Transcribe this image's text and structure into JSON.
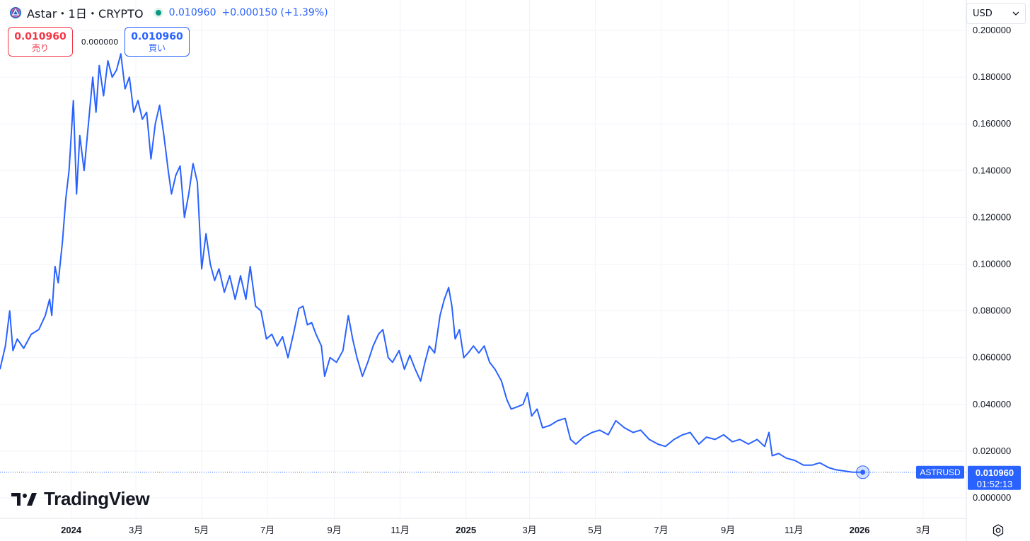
{
  "header": {
    "title": "Astar・1日・CRYPTO",
    "price": "0.010960",
    "change": "+0.000150 (+1.39%)"
  },
  "trade": {
    "sell_value": "0.010960",
    "sell_label": "売り",
    "spread": "0.000000",
    "buy_value": "0.010960",
    "buy_label": "買い"
  },
  "currency": {
    "selected": "USD"
  },
  "brand": "TradingView",
  "price_label": {
    "symbol": "ASTRUSD",
    "value": "0.010960",
    "countdown": "01:52:13"
  },
  "colors": {
    "line": "#2962ff",
    "grid": "#f0f3fa",
    "text": "#131722",
    "sell": "#f23645",
    "buy": "#2962ff"
  },
  "chart_data": {
    "type": "line",
    "series": [
      {
        "points": [
          [
            "2023-10-27",
            0.055
          ],
          [
            "2023-11-01",
            0.065
          ],
          [
            "2023-11-05",
            0.08
          ],
          [
            "2023-11-08",
            0.063
          ],
          [
            "2023-11-12",
            0.068
          ],
          [
            "2023-11-18",
            0.064
          ],
          [
            "2023-11-25",
            0.07
          ],
          [
            "2023-12-02",
            0.072
          ],
          [
            "2023-12-08",
            0.078
          ],
          [
            "2023-12-12",
            0.085
          ],
          [
            "2023-12-14",
            0.078
          ],
          [
            "2023-12-17",
            0.099
          ],
          [
            "2023-12-20",
            0.092
          ],
          [
            "2023-12-24",
            0.11
          ],
          [
            "2023-12-27",
            0.128
          ],
          [
            "2023-12-30",
            0.14
          ],
          [
            "2024-01-03",
            0.17
          ],
          [
            "2024-01-06",
            0.13
          ],
          [
            "2024-01-09",
            0.155
          ],
          [
            "2024-01-13",
            0.14
          ],
          [
            "2024-01-17",
            0.16
          ],
          [
            "2024-01-21",
            0.18
          ],
          [
            "2024-01-24",
            0.165
          ],
          [
            "2024-01-27",
            0.185
          ],
          [
            "2024-01-31",
            0.172
          ],
          [
            "2024-02-04",
            0.187
          ],
          [
            "2024-02-08",
            0.18
          ],
          [
            "2024-02-12",
            0.183
          ],
          [
            "2024-02-16",
            0.19
          ],
          [
            "2024-02-20",
            0.175
          ],
          [
            "2024-02-24",
            0.18
          ],
          [
            "2024-02-28",
            0.165
          ],
          [
            "2024-03-03",
            0.17
          ],
          [
            "2024-03-07",
            0.162
          ],
          [
            "2024-03-11",
            0.165
          ],
          [
            "2024-03-15",
            0.145
          ],
          [
            "2024-03-19",
            0.16
          ],
          [
            "2024-03-23",
            0.168
          ],
          [
            "2024-03-27",
            0.155
          ],
          [
            "2024-03-31",
            0.14
          ],
          [
            "2024-04-03",
            0.13
          ],
          [
            "2024-04-07",
            0.138
          ],
          [
            "2024-04-11",
            0.142
          ],
          [
            "2024-04-15",
            0.12
          ],
          [
            "2024-04-19",
            0.13
          ],
          [
            "2024-04-23",
            0.143
          ],
          [
            "2024-04-27",
            0.135
          ],
          [
            "2024-05-01",
            0.098
          ],
          [
            "2024-05-05",
            0.113
          ],
          [
            "2024-05-09",
            0.1
          ],
          [
            "2024-05-13",
            0.093
          ],
          [
            "2024-05-17",
            0.098
          ],
          [
            "2024-05-22",
            0.088
          ],
          [
            "2024-05-27",
            0.095
          ],
          [
            "2024-06-01",
            0.085
          ],
          [
            "2024-06-06",
            0.095
          ],
          [
            "2024-06-11",
            0.085
          ],
          [
            "2024-06-15",
            0.099
          ],
          [
            "2024-06-20",
            0.082
          ],
          [
            "2024-06-25",
            0.08
          ],
          [
            "2024-06-30",
            0.068
          ],
          [
            "2024-07-05",
            0.07
          ],
          [
            "2024-07-10",
            0.065
          ],
          [
            "2024-07-15",
            0.069
          ],
          [
            "2024-07-20",
            0.06
          ],
          [
            "2024-07-25",
            0.07
          ],
          [
            "2024-07-30",
            0.081
          ],
          [
            "2024-08-03",
            0.082
          ],
          [
            "2024-08-07",
            0.074
          ],
          [
            "2024-08-11",
            0.075
          ],
          [
            "2024-08-15",
            0.07
          ],
          [
            "2024-08-20",
            0.065
          ],
          [
            "2024-08-23",
            0.052
          ],
          [
            "2024-08-28",
            0.06
          ],
          [
            "2024-09-03",
            0.058
          ],
          [
            "2024-09-09",
            0.063
          ],
          [
            "2024-09-14",
            0.078
          ],
          [
            "2024-09-18",
            0.068
          ],
          [
            "2024-09-22",
            0.06
          ],
          [
            "2024-09-27",
            0.052
          ],
          [
            "2024-10-02",
            0.058
          ],
          [
            "2024-10-07",
            0.065
          ],
          [
            "2024-10-12",
            0.07
          ],
          [
            "2024-10-16",
            0.072
          ],
          [
            "2024-10-21",
            0.06
          ],
          [
            "2024-10-25",
            0.058
          ],
          [
            "2024-10-31",
            0.063
          ],
          [
            "2024-11-05",
            0.055
          ],
          [
            "2024-11-10",
            0.061
          ],
          [
            "2024-11-15",
            0.055
          ],
          [
            "2024-11-20",
            0.05
          ],
          [
            "2024-11-24",
            0.058
          ],
          [
            "2024-11-28",
            0.065
          ],
          [
            "2024-12-03",
            0.062
          ],
          [
            "2024-12-08",
            0.078
          ],
          [
            "2024-12-12",
            0.085
          ],
          [
            "2024-12-16",
            0.09
          ],
          [
            "2024-12-19",
            0.082
          ],
          [
            "2024-12-22",
            0.068
          ],
          [
            "2024-12-26",
            0.072
          ],
          [
            "2024-12-30",
            0.06
          ],
          [
            "2025-01-03",
            0.062
          ],
          [
            "2025-01-08",
            0.065
          ],
          [
            "2025-01-13",
            0.062
          ],
          [
            "2025-01-18",
            0.065
          ],
          [
            "2025-01-23",
            0.058
          ],
          [
            "2025-01-28",
            0.055
          ],
          [
            "2025-02-03",
            0.05
          ],
          [
            "2025-02-08",
            0.042
          ],
          [
            "2025-02-12",
            0.038
          ],
          [
            "2025-02-18",
            0.039
          ],
          [
            "2025-02-23",
            0.04
          ],
          [
            "2025-02-27",
            0.045
          ],
          [
            "2025-03-03",
            0.035
          ],
          [
            "2025-03-08",
            0.038
          ],
          [
            "2025-03-13",
            0.03
          ],
          [
            "2025-03-20",
            0.031
          ],
          [
            "2025-03-27",
            0.033
          ],
          [
            "2025-04-03",
            0.034
          ],
          [
            "2025-04-08",
            0.025
          ],
          [
            "2025-04-13",
            0.023
          ],
          [
            "2025-04-20",
            0.026
          ],
          [
            "2025-04-28",
            0.028
          ],
          [
            "2025-05-05",
            0.029
          ],
          [
            "2025-05-13",
            0.027
          ],
          [
            "2025-05-20",
            0.033
          ],
          [
            "2025-05-28",
            0.03
          ],
          [
            "2025-06-05",
            0.028
          ],
          [
            "2025-06-12",
            0.029
          ],
          [
            "2025-06-20",
            0.025
          ],
          [
            "2025-06-28",
            0.023
          ],
          [
            "2025-07-05",
            0.022
          ],
          [
            "2025-07-13",
            0.025
          ],
          [
            "2025-07-21",
            0.027
          ],
          [
            "2025-07-28",
            0.028
          ],
          [
            "2025-08-05",
            0.023
          ],
          [
            "2025-08-12",
            0.026
          ],
          [
            "2025-08-20",
            0.025
          ],
          [
            "2025-08-28",
            0.027
          ],
          [
            "2025-09-05",
            0.024
          ],
          [
            "2025-09-12",
            0.025
          ],
          [
            "2025-09-20",
            0.023
          ],
          [
            "2025-09-28",
            0.025
          ],
          [
            "2025-10-05",
            0.022
          ],
          [
            "2025-10-09",
            0.028
          ],
          [
            "2025-10-12",
            0.018
          ],
          [
            "2025-10-18",
            0.019
          ],
          [
            "2025-10-25",
            0.017
          ],
          [
            "2025-11-02",
            0.016
          ],
          [
            "2025-11-10",
            0.014
          ],
          [
            "2025-11-18",
            0.014
          ],
          [
            "2025-11-25",
            0.015
          ],
          [
            "2025-12-03",
            0.013
          ],
          [
            "2025-12-10",
            0.012
          ],
          [
            "2025-12-18",
            0.0115
          ],
          [
            "2025-12-25",
            0.011
          ],
          [
            "2026-01-04",
            0.01096
          ]
        ]
      }
    ],
    "ylim": [
      0.0,
      0.2
    ],
    "y_ticks": [
      "0.000000",
      "0.020000",
      "0.040000",
      "0.060000",
      "0.080000",
      "0.100000",
      "0.120000",
      "0.140000",
      "0.160000",
      "0.180000",
      "0.200000"
    ],
    "y_tick_values": [
      0,
      0.02,
      0.04,
      0.06,
      0.08,
      0.1,
      0.12,
      0.14,
      0.16,
      0.18,
      0.2
    ],
    "x_ticks": [
      "2024",
      "3月",
      "5月",
      "7月",
      "9月",
      "11月",
      "2025",
      "3月",
      "5月",
      "7月",
      "9月",
      "11月",
      "2026",
      "3月"
    ],
    "x_tick_dates": [
      "2024-01-01",
      "2024-03-01",
      "2024-05-01",
      "2024-07-01",
      "2024-09-01",
      "2024-11-01",
      "2025-01-01",
      "2025-03-01",
      "2025-05-01",
      "2025-07-01",
      "2025-09-01",
      "2025-11-01",
      "2026-01-01",
      "2026-03-01"
    ],
    "x_range": [
      "2023-10-27",
      "2026-04-10"
    ],
    "last_value": 0.01096,
    "grid": true
  }
}
